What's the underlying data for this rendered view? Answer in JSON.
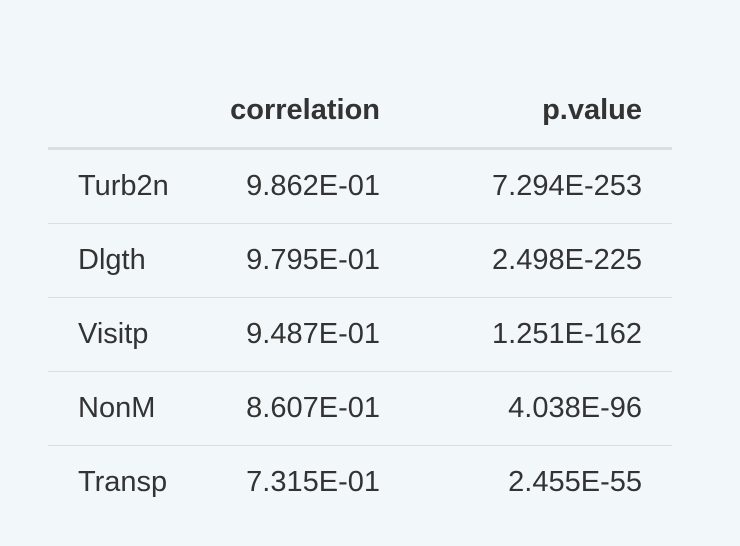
{
  "table": {
    "headers": [
      "",
      "correlation",
      "p.value"
    ],
    "rows": [
      {
        "name": "Turb2n",
        "correlation": "9.862E-01",
        "p_value": "7.294E-253"
      },
      {
        "name": "Dlgth",
        "correlation": "9.795E-01",
        "p_value": "2.498E-225"
      },
      {
        "name": "Visitp",
        "correlation": "9.487E-01",
        "p_value": "1.251E-162"
      },
      {
        "name": "NonM",
        "correlation": "8.607E-01",
        "p_value": "4.038E-96"
      },
      {
        "name": "Transp",
        "correlation": "7.315E-01",
        "p_value": "2.455E-55"
      }
    ]
  }
}
